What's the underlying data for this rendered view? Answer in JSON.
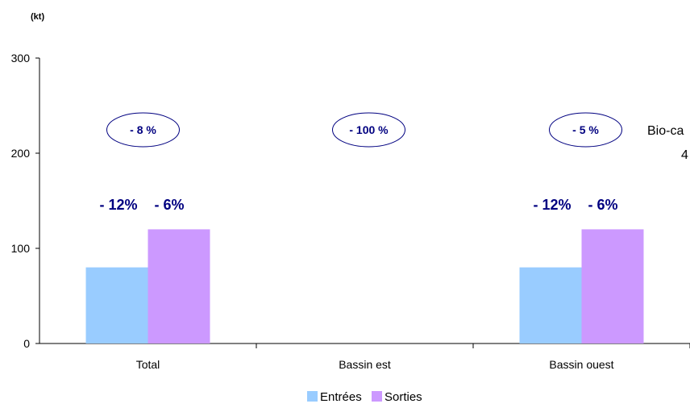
{
  "chart_data": {
    "type": "bar",
    "unit_label": "(kt)",
    "categories": [
      "Total",
      "Bassin est",
      "Bassin ouest"
    ],
    "series": [
      {
        "name": "Entrées",
        "color": "#99ccff",
        "values": [
          80,
          0,
          80
        ]
      },
      {
        "name": "Sorties",
        "color": "#cc99ff",
        "values": [
          120,
          0,
          120
        ]
      }
    ],
    "ylim": [
      0,
      300
    ],
    "yticks": [
      0,
      100,
      200,
      300
    ],
    "grid": false,
    "legend_position": "bottom",
    "bar_labels": [
      {
        "category": 0,
        "entrees": "- 12%",
        "sorties": "- 6%"
      },
      {
        "category": 2,
        "entrees": "- 12%",
        "sorties": "- 6%"
      }
    ],
    "ellipse_labels": [
      "- 8 %",
      "- 100 %",
      "- 5 %"
    ],
    "side_note": {
      "line1": "Bio-ca",
      "line2": "4"
    }
  },
  "colors": {
    "label_color": "#000080",
    "ellipse_stroke": "#000080"
  }
}
